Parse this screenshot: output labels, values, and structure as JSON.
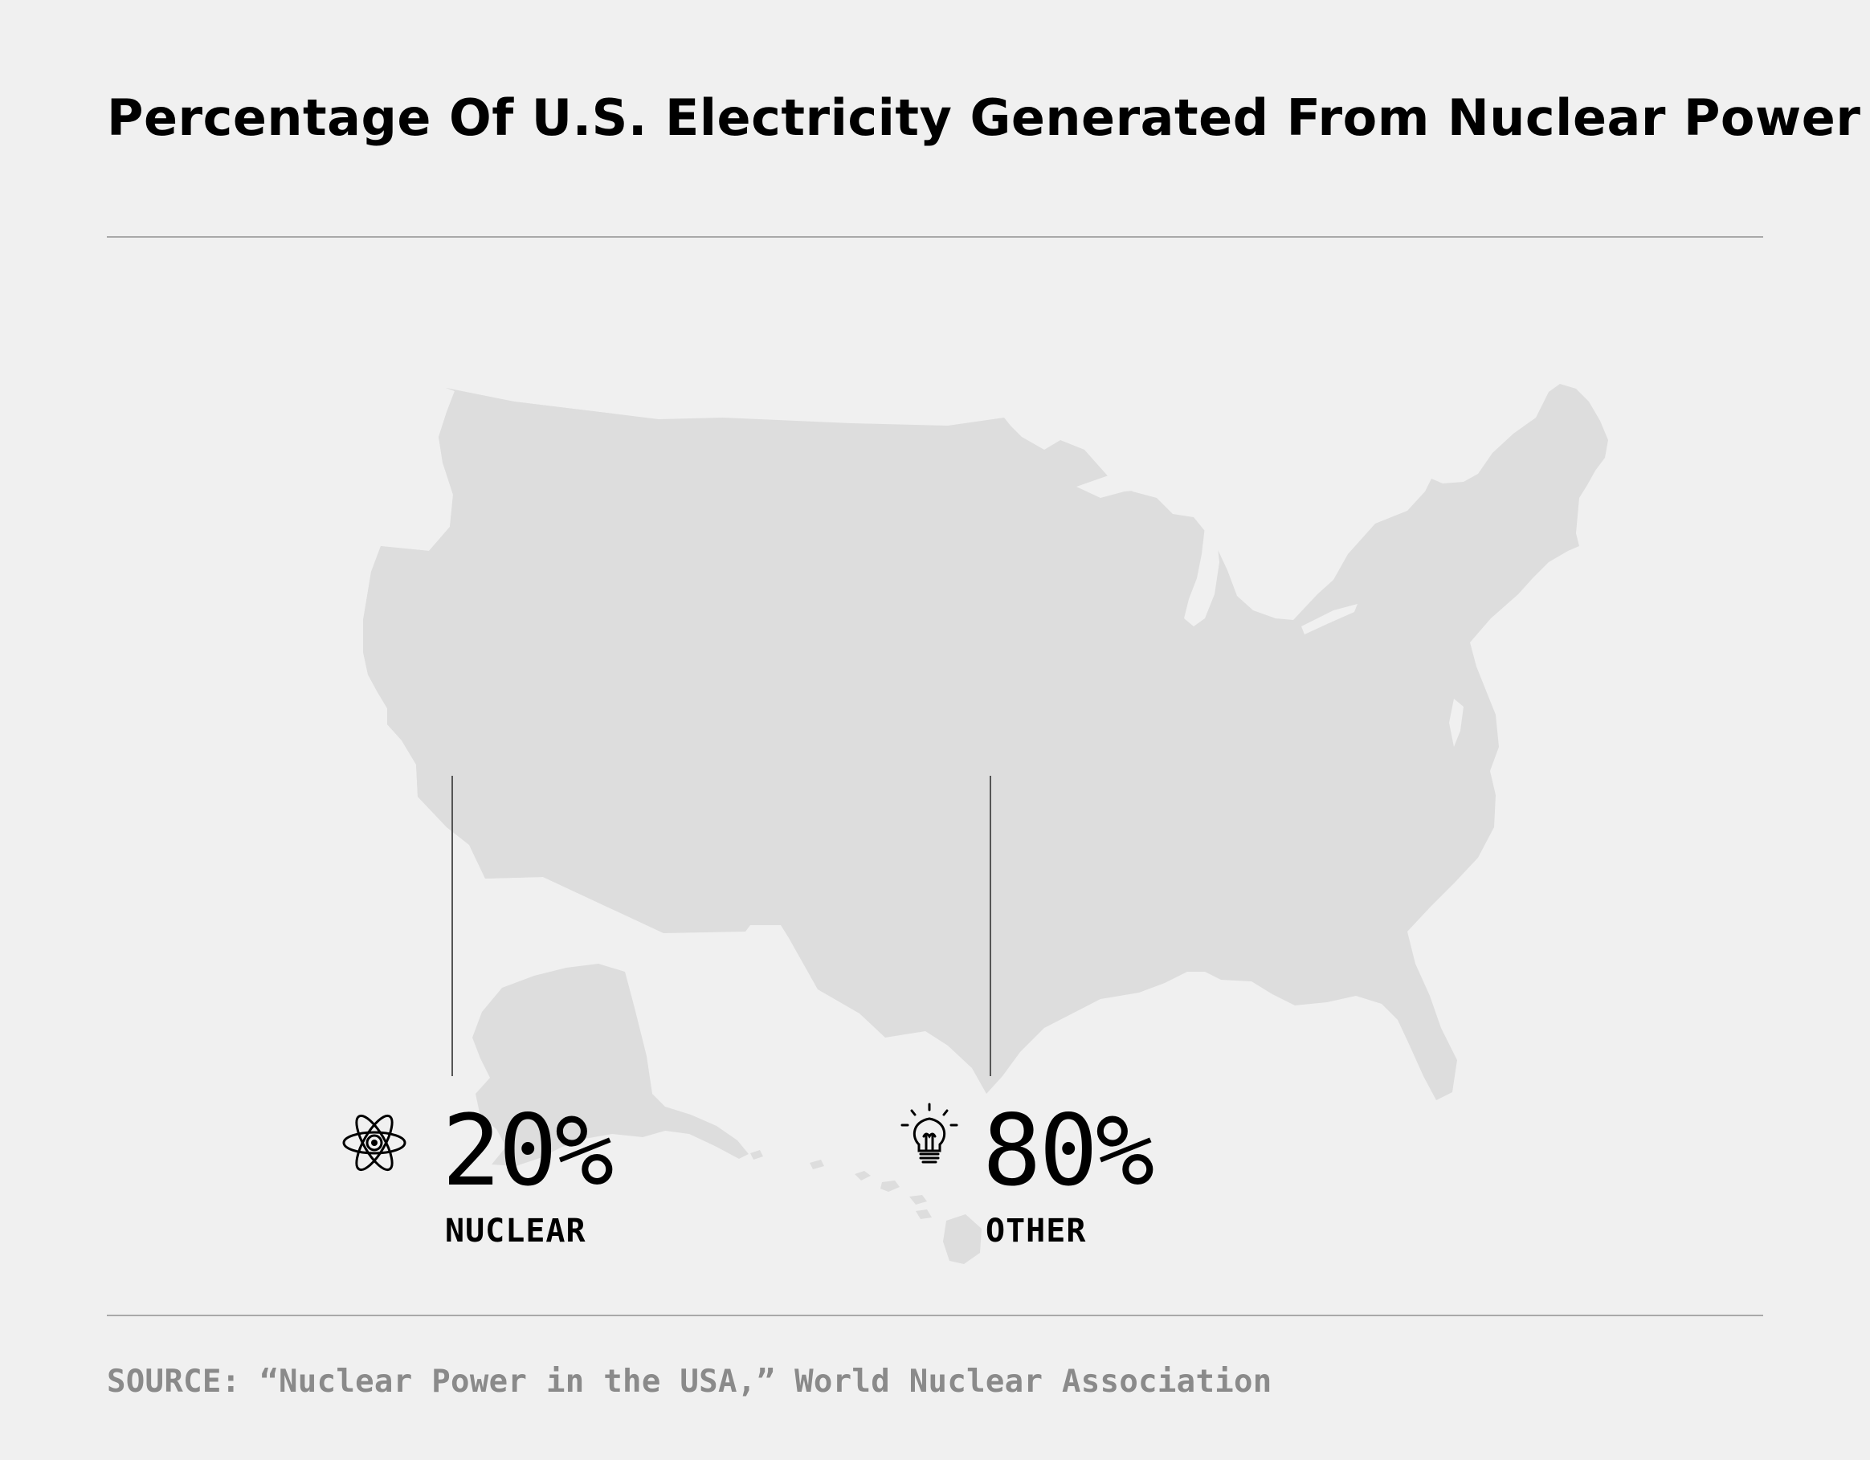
{
  "title": "Percentage Of U.S. Electricity Generated From Nuclear Power",
  "source": "SOURCE: “Nuclear Power in the USA,” World Nuclear Association",
  "icons": {
    "nuclear": "atom-icon",
    "other": "lightbulb-icon"
  },
  "colors": {
    "nuclear": "#52be1c",
    "other": "#dddddd",
    "background": "#f0f0f0"
  },
  "chart_data": {
    "type": "area",
    "title": "Percentage Of U.S. Electricity Generated From Nuclear Power",
    "categories": [
      "NUCLEAR",
      "OTHER"
    ],
    "values": [
      20,
      80
    ],
    "value_labels": [
      "20%",
      "80%"
    ],
    "unit": "%"
  }
}
